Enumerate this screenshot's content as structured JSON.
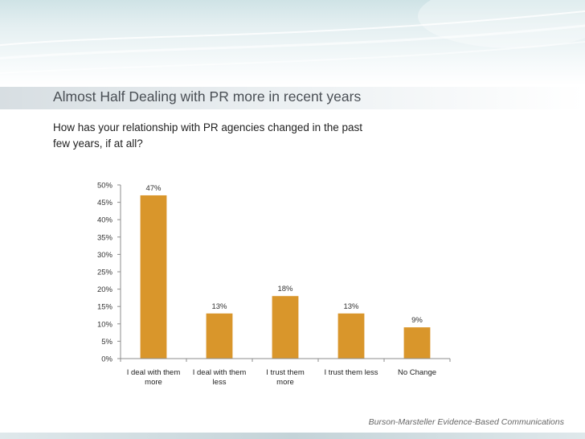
{
  "slide": {
    "title": "Almost Half Dealing with PR more in recent years",
    "question": "How has your relationship with PR agencies changed in the past\nfew years, if at all?",
    "source": "Burson-Marsteller Evidence-Based Communications"
  },
  "chart_data": {
    "type": "bar",
    "categories": [
      [
        "I deal with them",
        "more"
      ],
      [
        "I deal with them",
        "less"
      ],
      [
        "I  trust them",
        "more"
      ],
      [
        "I trust them less"
      ],
      [
        "No Change"
      ]
    ],
    "values": [
      47,
      13,
      18,
      13,
      9
    ],
    "value_labels": [
      "47%",
      "13%",
      "18%",
      "13%",
      "9%"
    ],
    "ylim": [
      0,
      50
    ],
    "yticks": [
      0,
      5,
      10,
      15,
      20,
      25,
      30,
      35,
      40,
      45,
      50
    ],
    "ytick_labels": [
      "0%",
      "5%",
      "10%",
      "15%",
      "20%",
      "25%",
      "30%",
      "35%",
      "40%",
      "45%",
      "50%"
    ],
    "grid": false,
    "legend": "none",
    "bar_color": "#d9962b"
  }
}
